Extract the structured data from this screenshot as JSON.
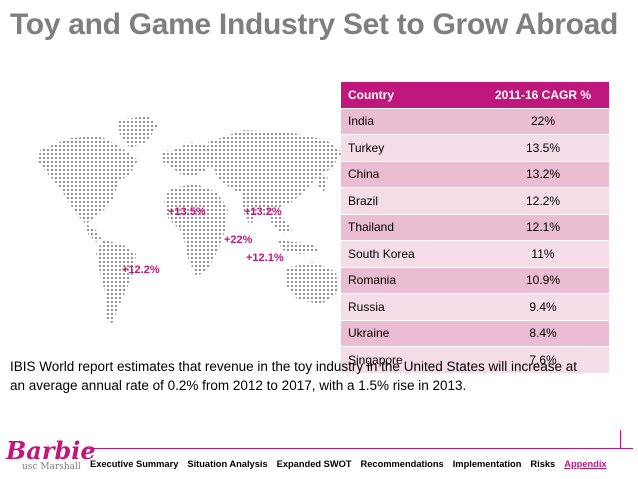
{
  "title": "Toy and Game Industry Set to Grow Abroad",
  "colors": {
    "accent": "#c0177d",
    "title": "#7f7f7f",
    "row_light": "#f5dde8",
    "row_dark": "#ebbdd2"
  },
  "map": {
    "labels": [
      "+13.5%",
      "+13.2%",
      "+22%",
      "+12.1%",
      "+12.2%"
    ]
  },
  "table": {
    "headers": [
      "Country",
      "2011-16 CAGR %"
    ],
    "rows": [
      [
        "India",
        "22%"
      ],
      [
        "Turkey",
        "13.5%"
      ],
      [
        "China",
        "13.2%"
      ],
      [
        "Brazil",
        "12.2%"
      ],
      [
        "Thailand",
        "12.1%"
      ],
      [
        "South Korea",
        "11%"
      ],
      [
        "Romania",
        "10.9%"
      ],
      [
        "Russia",
        "9.4%"
      ],
      [
        "Ukraine",
        "8.4%"
      ],
      [
        "Singapore",
        "7.6%"
      ]
    ]
  },
  "note": "IBIS World report estimates that revenue in the toy industry in the United States will increase at an average annual rate of 0.2% from 2012 to 2017, with a 1.5% rise in 2013.",
  "logo": {
    "text": "Barbie",
    "sub": "usc Marshall"
  },
  "nav": [
    "Executive Summary",
    "Situation Analysis",
    "Expanded SWOT",
    "Recommendations",
    "Implementation",
    "Risks",
    "Appendix"
  ]
}
